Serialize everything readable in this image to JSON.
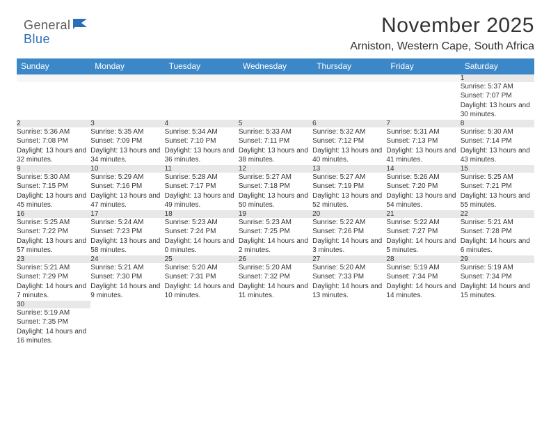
{
  "brand": {
    "part1": "General",
    "part2": "Blue"
  },
  "title": "November 2025",
  "location": "Arniston, Western Cape, South Africa",
  "colors": {
    "header_bg": "#3b87c8",
    "header_text": "#ffffff",
    "daynum_bg": "#e8e8e8",
    "row_border": "#3b87c8",
    "text": "#333333",
    "logo_gray": "#5a5a5a",
    "logo_blue": "#2a6db8"
  },
  "weekdays": [
    "Sunday",
    "Monday",
    "Tuesday",
    "Wednesday",
    "Thursday",
    "Friday",
    "Saturday"
  ],
  "weeks": [
    [
      null,
      null,
      null,
      null,
      null,
      null,
      {
        "n": "1",
        "sunrise": "5:37 AM",
        "sunset": "7:07 PM",
        "daylight": "13 hours and 30 minutes."
      }
    ],
    [
      {
        "n": "2",
        "sunrise": "5:36 AM",
        "sunset": "7:08 PM",
        "daylight": "13 hours and 32 minutes."
      },
      {
        "n": "3",
        "sunrise": "5:35 AM",
        "sunset": "7:09 PM",
        "daylight": "13 hours and 34 minutes."
      },
      {
        "n": "4",
        "sunrise": "5:34 AM",
        "sunset": "7:10 PM",
        "daylight": "13 hours and 36 minutes."
      },
      {
        "n": "5",
        "sunrise": "5:33 AM",
        "sunset": "7:11 PM",
        "daylight": "13 hours and 38 minutes."
      },
      {
        "n": "6",
        "sunrise": "5:32 AM",
        "sunset": "7:12 PM",
        "daylight": "13 hours and 40 minutes."
      },
      {
        "n": "7",
        "sunrise": "5:31 AM",
        "sunset": "7:13 PM",
        "daylight": "13 hours and 41 minutes."
      },
      {
        "n": "8",
        "sunrise": "5:30 AM",
        "sunset": "7:14 PM",
        "daylight": "13 hours and 43 minutes."
      }
    ],
    [
      {
        "n": "9",
        "sunrise": "5:30 AM",
        "sunset": "7:15 PM",
        "daylight": "13 hours and 45 minutes."
      },
      {
        "n": "10",
        "sunrise": "5:29 AM",
        "sunset": "7:16 PM",
        "daylight": "13 hours and 47 minutes."
      },
      {
        "n": "11",
        "sunrise": "5:28 AM",
        "sunset": "7:17 PM",
        "daylight": "13 hours and 49 minutes."
      },
      {
        "n": "12",
        "sunrise": "5:27 AM",
        "sunset": "7:18 PM",
        "daylight": "13 hours and 50 minutes."
      },
      {
        "n": "13",
        "sunrise": "5:27 AM",
        "sunset": "7:19 PM",
        "daylight": "13 hours and 52 minutes."
      },
      {
        "n": "14",
        "sunrise": "5:26 AM",
        "sunset": "7:20 PM",
        "daylight": "13 hours and 54 minutes."
      },
      {
        "n": "15",
        "sunrise": "5:25 AM",
        "sunset": "7:21 PM",
        "daylight": "13 hours and 55 minutes."
      }
    ],
    [
      {
        "n": "16",
        "sunrise": "5:25 AM",
        "sunset": "7:22 PM",
        "daylight": "13 hours and 57 minutes."
      },
      {
        "n": "17",
        "sunrise": "5:24 AM",
        "sunset": "7:23 PM",
        "daylight": "13 hours and 58 minutes."
      },
      {
        "n": "18",
        "sunrise": "5:23 AM",
        "sunset": "7:24 PM",
        "daylight": "14 hours and 0 minutes."
      },
      {
        "n": "19",
        "sunrise": "5:23 AM",
        "sunset": "7:25 PM",
        "daylight": "14 hours and 2 minutes."
      },
      {
        "n": "20",
        "sunrise": "5:22 AM",
        "sunset": "7:26 PM",
        "daylight": "14 hours and 3 minutes."
      },
      {
        "n": "21",
        "sunrise": "5:22 AM",
        "sunset": "7:27 PM",
        "daylight": "14 hours and 5 minutes."
      },
      {
        "n": "22",
        "sunrise": "5:21 AM",
        "sunset": "7:28 PM",
        "daylight": "14 hours and 6 minutes."
      }
    ],
    [
      {
        "n": "23",
        "sunrise": "5:21 AM",
        "sunset": "7:29 PM",
        "daylight": "14 hours and 7 minutes."
      },
      {
        "n": "24",
        "sunrise": "5:21 AM",
        "sunset": "7:30 PM",
        "daylight": "14 hours and 9 minutes."
      },
      {
        "n": "25",
        "sunrise": "5:20 AM",
        "sunset": "7:31 PM",
        "daylight": "14 hours and 10 minutes."
      },
      {
        "n": "26",
        "sunrise": "5:20 AM",
        "sunset": "7:32 PM",
        "daylight": "14 hours and 11 minutes."
      },
      {
        "n": "27",
        "sunrise": "5:20 AM",
        "sunset": "7:33 PM",
        "daylight": "14 hours and 13 minutes."
      },
      {
        "n": "28",
        "sunrise": "5:19 AM",
        "sunset": "7:34 PM",
        "daylight": "14 hours and 14 minutes."
      },
      {
        "n": "29",
        "sunrise": "5:19 AM",
        "sunset": "7:34 PM",
        "daylight": "14 hours and 15 minutes."
      }
    ],
    [
      {
        "n": "30",
        "sunrise": "5:19 AM",
        "sunset": "7:35 PM",
        "daylight": "14 hours and 16 minutes."
      },
      null,
      null,
      null,
      null,
      null,
      null
    ]
  ],
  "labels": {
    "sunrise": "Sunrise:",
    "sunset": "Sunset:",
    "daylight": "Daylight:"
  }
}
